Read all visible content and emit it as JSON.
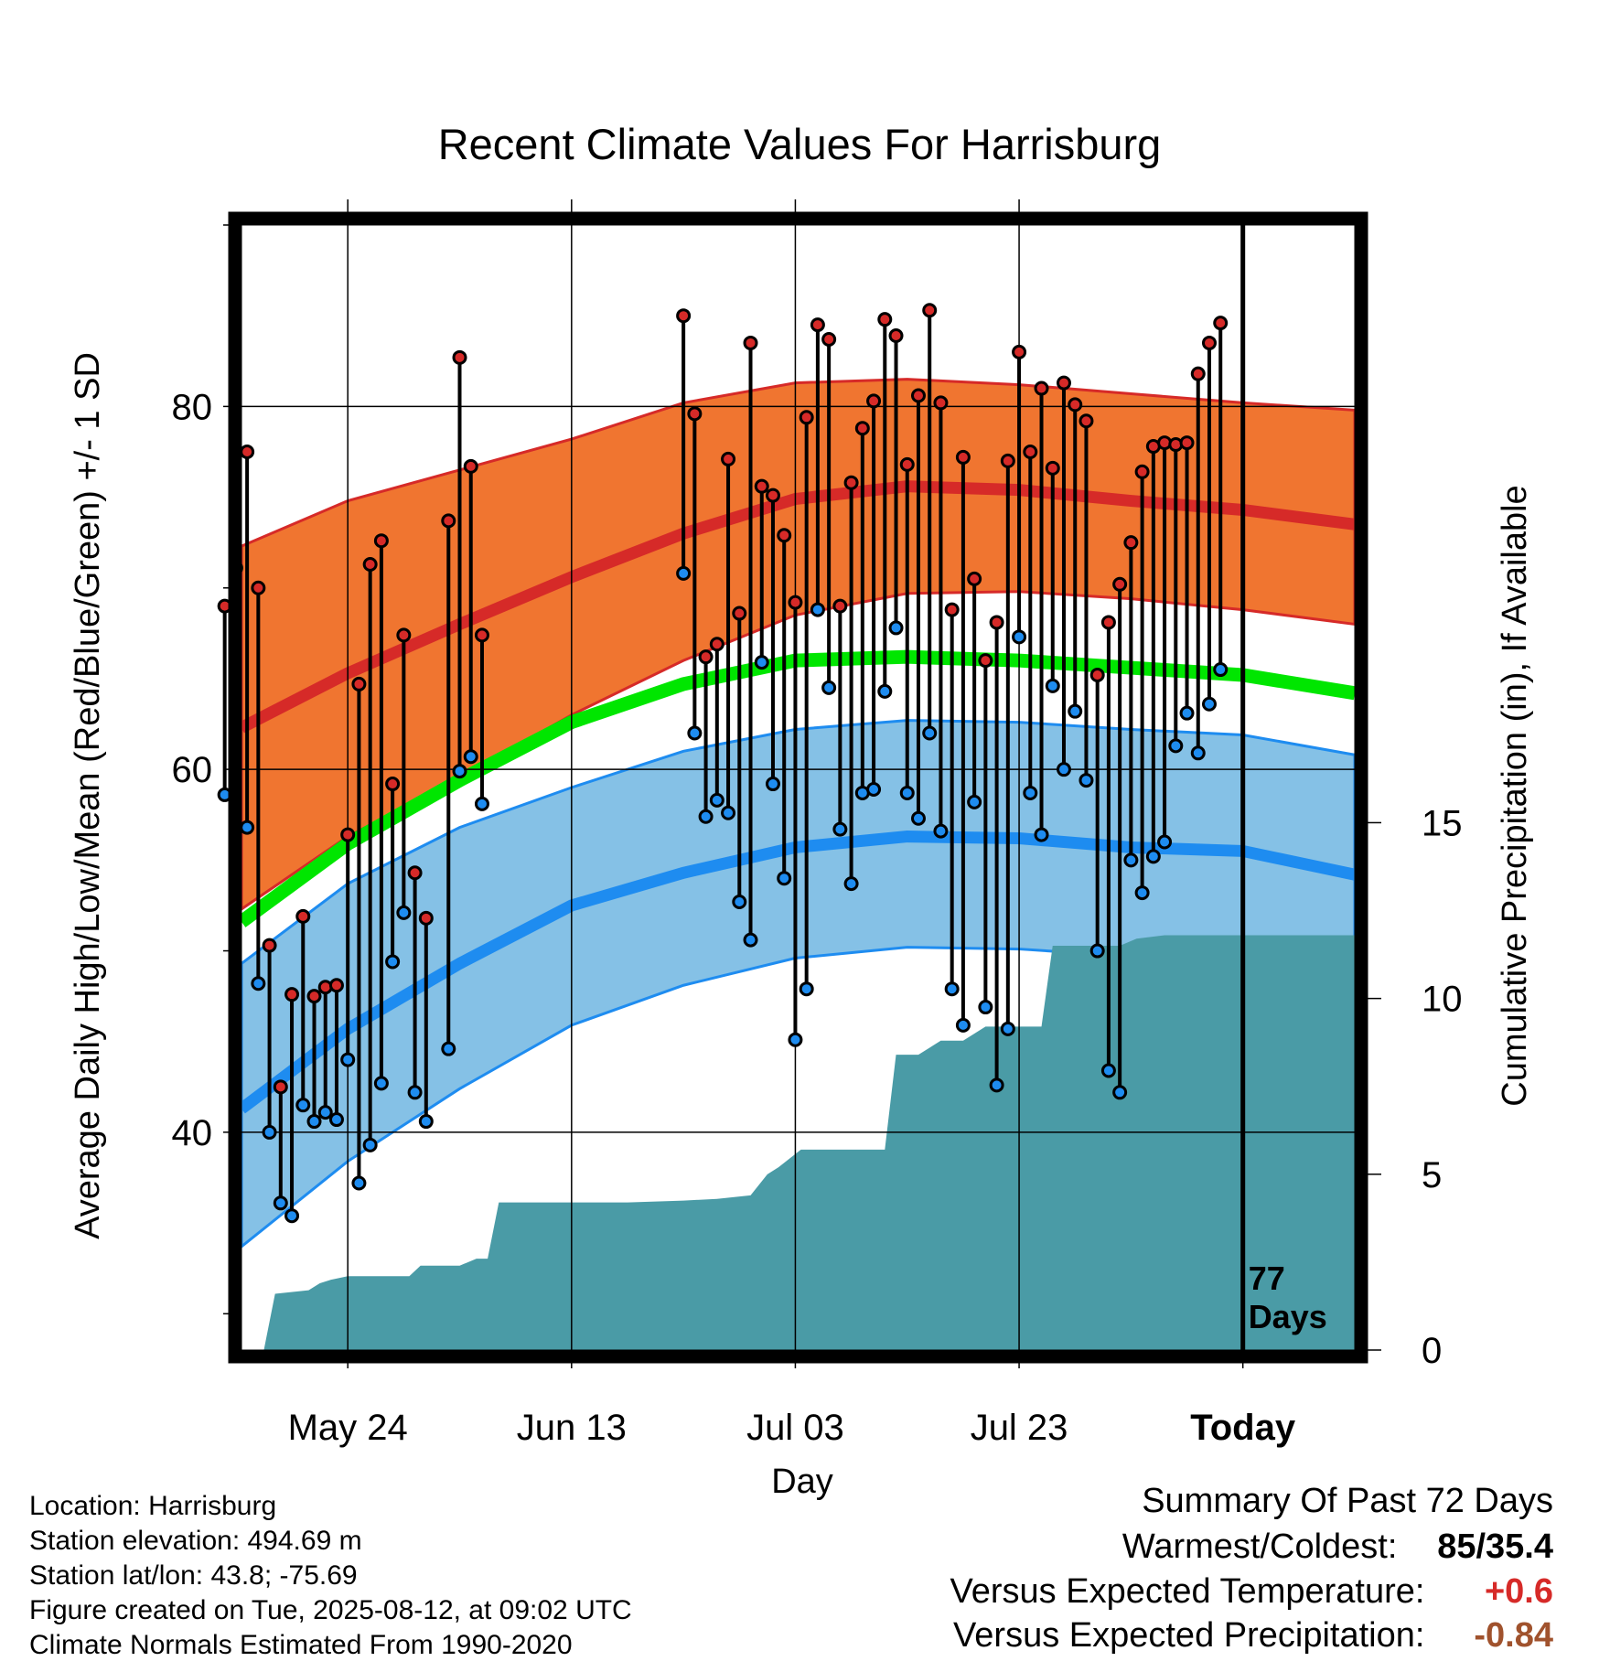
{
  "chart_data": {
    "type": "line",
    "title": "Recent Climate Values For Harrisburg",
    "xlabel": "Day",
    "ylabel": "Average Daily High/Low/Mean (Red/Blue/Green) +/- 1 SD",
    "ylabel_right": "Cumulative Precipitation (in), If Available",
    "ylim": [
      28,
      90
    ],
    "ylim_right": [
      0,
      32
    ],
    "xlim": [
      -9.5,
      90
    ],
    "grid": true,
    "x_ticks": [
      {
        "x": 0,
        "label": "May 24"
      },
      {
        "x": 20,
        "label": "Jun 13"
      },
      {
        "x": 40,
        "label": "Jul 03"
      },
      {
        "x": 60,
        "label": "Jul 23"
      },
      {
        "x": 80,
        "label": "Today"
      }
    ],
    "y_ticks": [
      {
        "y": 40,
        "label": "40"
      },
      {
        "y": 60,
        "label": "60"
      },
      {
        "y": 80,
        "label": "80"
      }
    ],
    "y_minor_ticks": [
      30,
      50,
      70,
      90
    ],
    "y_right_ticks": [
      {
        "y": 0,
        "label": "0"
      },
      {
        "y": 5,
        "label": "5"
      },
      {
        "y": 10,
        "label": "10"
      },
      {
        "y": 15,
        "label": "15"
      }
    ],
    "today_x": 80,
    "today_label_1": "77",
    "today_label_2": "Days",
    "normals": {
      "x": [
        -10,
        0,
        10,
        20,
        30,
        40,
        50,
        60,
        70,
        80,
        90
      ],
      "high_mean": [
        62.3,
        65.3,
        68.0,
        70.6,
        73.0,
        74.9,
        75.6,
        75.4,
        74.8,
        74.3,
        73.5
      ],
      "high_upper": [
        72.3,
        74.8,
        76.5,
        78.2,
        80.2,
        81.3,
        81.5,
        81.2,
        80.7,
        80.2,
        79.8
      ],
      "high_lower": [
        52.3,
        56.3,
        59.5,
        63.0,
        66.0,
        68.5,
        69.7,
        69.8,
        69.4,
        68.8,
        68.0
      ],
      "mean": [
        51.6,
        55.9,
        59.4,
        62.6,
        64.7,
        66.0,
        66.2,
        66.0,
        65.6,
        65.2,
        64.2
      ],
      "low_mean": [
        41.3,
        45.7,
        49.3,
        52.5,
        54.3,
        55.7,
        56.3,
        56.2,
        55.7,
        55.5,
        54.2
      ],
      "low_upper": [
        49.3,
        53.7,
        56.8,
        59.0,
        61.0,
        62.2,
        62.7,
        62.6,
        62.2,
        61.9,
        60.8
      ],
      "low_lower": [
        33.7,
        38.4,
        42.4,
        45.9,
        48.1,
        49.6,
        50.2,
        50.1,
        49.7,
        49.1,
        48.0
      ]
    },
    "colors": {
      "high_band": "#f07530",
      "high_line": "#d62a28",
      "low_band": "#85c1e6",
      "low_line": "#1e8cf0",
      "mean_line": "#00e600",
      "precip": "#4a9ba6",
      "frame": "#000000"
    },
    "daily": [
      {
        "x": -11,
        "high": 69.0,
        "low": 58.6
      },
      {
        "x": -10,
        "high": 71.1,
        "low": 56.7
      },
      {
        "x": -9,
        "high": 77.5,
        "low": 56.8
      },
      {
        "x": -8,
        "high": 70.0,
        "low": 48.2
      },
      {
        "x": -7,
        "high": 50.3,
        "low": 40.0
      },
      {
        "x": -6,
        "high": 42.5,
        "low": 36.1
      },
      {
        "x": -5,
        "high": 47.6,
        "low": 35.4
      },
      {
        "x": -4,
        "high": 51.9,
        "low": 41.5
      },
      {
        "x": -3,
        "high": 47.5,
        "low": 40.6
      },
      {
        "x": -2,
        "high": 48.0,
        "low": 41.1
      },
      {
        "x": -1,
        "high": 48.1,
        "low": 40.7
      },
      {
        "x": 0,
        "high": 56.4,
        "low": 44.0
      },
      {
        "x": 1,
        "high": 64.7,
        "low": 37.2
      },
      {
        "x": 2,
        "high": 71.3,
        "low": 39.3
      },
      {
        "x": 3,
        "high": 72.6,
        "low": 42.7
      },
      {
        "x": 4,
        "high": 59.2,
        "low": 49.4
      },
      {
        "x": 5,
        "high": 67.4,
        "low": 52.1
      },
      {
        "x": 6,
        "high": 54.3,
        "low": 42.2
      },
      {
        "x": 7,
        "high": 51.8,
        "low": 40.6
      },
      {
        "x": 9,
        "high": 73.7,
        "low": 44.6
      },
      {
        "x": 10,
        "high": 82.7,
        "low": 59.9
      },
      {
        "x": 11,
        "high": 76.7,
        "low": 60.7
      },
      {
        "x": 12,
        "high": 67.4,
        "low": 58.1
      },
      {
        "x": 30,
        "high": 85.0,
        "low": 70.8
      },
      {
        "x": 31,
        "high": 79.6,
        "low": 62.0
      },
      {
        "x": 32,
        "high": 66.2,
        "low": 57.4
      },
      {
        "x": 33,
        "high": 66.9,
        "low": 58.3
      },
      {
        "x": 34,
        "high": 77.1,
        "low": 57.6
      },
      {
        "x": 35,
        "high": 68.6,
        "low": 52.7
      },
      {
        "x": 36,
        "high": 83.5,
        "low": 50.6
      },
      {
        "x": 37,
        "high": 75.6,
        "low": 65.9
      },
      {
        "x": 38,
        "high": 75.1,
        "low": 59.2
      },
      {
        "x": 39,
        "high": 72.9,
        "low": 54.0
      },
      {
        "x": 40,
        "high": 69.2,
        "low": 45.1
      },
      {
        "x": 41,
        "high": 79.4,
        "low": 47.9
      },
      {
        "x": 42,
        "high": 84.5,
        "low": 68.8
      },
      {
        "x": 43,
        "high": 83.7,
        "low": 64.5
      },
      {
        "x": 44,
        "high": 69.0,
        "low": 56.7
      },
      {
        "x": 45,
        "high": 75.8,
        "low": 53.7
      },
      {
        "x": 46,
        "high": 78.8,
        "low": 58.7
      },
      {
        "x": 47,
        "high": 80.3,
        "low": 58.9
      },
      {
        "x": 48,
        "high": 84.8,
        "low": 64.3
      },
      {
        "x": 49,
        "high": 83.9,
        "low": 67.8
      },
      {
        "x": 50,
        "high": 76.8,
        "low": 58.7
      },
      {
        "x": 51,
        "high": 80.6,
        "low": 57.3
      },
      {
        "x": 52,
        "high": 85.3,
        "low": 62.0
      },
      {
        "x": 53,
        "high": 80.2,
        "low": 56.6
      },
      {
        "x": 54,
        "high": 68.8,
        "low": 47.9
      },
      {
        "x": 55,
        "high": 77.2,
        "low": 45.9
      },
      {
        "x": 56,
        "high": 70.5,
        "low": 58.2
      },
      {
        "x": 57,
        "high": 66.0,
        "low": 46.9
      },
      {
        "x": 58,
        "high": 68.1,
        "low": 42.6
      },
      {
        "x": 59,
        "high": 77.0,
        "low": 45.7
      },
      {
        "x": 60,
        "high": 83.0,
        "low": 67.3
      },
      {
        "x": 61,
        "high": 77.5,
        "low": 58.7
      },
      {
        "x": 62,
        "high": 81.0,
        "low": 56.4
      },
      {
        "x": 63,
        "high": 76.6,
        "low": 64.6
      },
      {
        "x": 64,
        "high": 81.3,
        "low": 60.0
      },
      {
        "x": 65,
        "high": 80.1,
        "low": 63.2
      },
      {
        "x": 66,
        "high": 79.2,
        "low": 59.4
      },
      {
        "x": 67,
        "high": 65.2,
        "low": 50.0
      },
      {
        "x": 68,
        "high": 68.1,
        "low": 43.4
      },
      {
        "x": 69,
        "high": 70.2,
        "low": 42.2
      },
      {
        "x": 70,
        "high": 72.5,
        "low": 55.0
      },
      {
        "x": 71,
        "high": 76.4,
        "low": 53.2
      },
      {
        "x": 72,
        "high": 77.8,
        "low": 55.2
      },
      {
        "x": 73,
        "high": 78.0,
        "low": 56.0
      },
      {
        "x": 74,
        "high": 77.9,
        "low": 61.3
      },
      {
        "x": 75,
        "high": 78.0,
        "low": 63.1
      },
      {
        "x": 76,
        "high": 81.8,
        "low": 60.9
      },
      {
        "x": 77,
        "high": 83.5,
        "low": 63.6
      },
      {
        "x": 78,
        "high": 84.6,
        "low": 65.5
      }
    ],
    "precip": {
      "x": [
        -9.5,
        -7.5,
        -6.5,
        -3.5,
        -2.5,
        -1.5,
        0,
        5.5,
        6.5,
        10,
        11.5,
        12.5,
        13.5,
        25,
        30,
        33,
        36,
        37.5,
        38.5,
        40.5,
        48,
        49,
        51,
        53,
        55,
        57,
        62,
        63,
        69,
        70.5,
        73,
        90
      ],
      "y": [
        0,
        0,
        1.6,
        1.7,
        1.9,
        2.0,
        2.1,
        2.1,
        2.4,
        2.4,
        2.6,
        2.6,
        4.2,
        4.2,
        4.25,
        4.3,
        4.4,
        5.0,
        5.2,
        5.7,
        5.7,
        8.4,
        8.4,
        8.8,
        8.8,
        9.2,
        9.2,
        11.5,
        11.5,
        11.7,
        11.8,
        11.8
      ]
    }
  },
  "footer": {
    "location": "Location: Harrisburg",
    "elevation": "Station elevation: 494.69 m",
    "latlon": "Station lat/lon: 43.8; -75.69",
    "created": "Figure created on Tue, 2025-08-12, at 09:02 UTC",
    "normals_period": "Climate Normals Estimated From 1990-2020"
  },
  "summary": {
    "title": "Summary Of Past 72 Days",
    "warm_cold_label": "Warmest/Coldest:",
    "warm_cold_value": "85/35.4",
    "temp_label": "Versus Expected Temperature:",
    "temp_value": "+0.6",
    "temp_color": "#d62a28",
    "precip_label": "Versus Expected Precipitation:",
    "precip_value": "-0.84",
    "precip_color": "#a0522d"
  }
}
